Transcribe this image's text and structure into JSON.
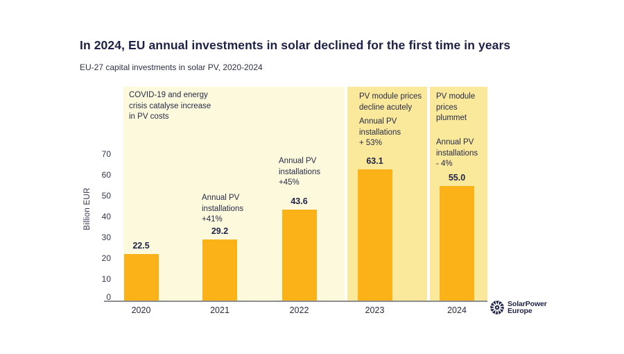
{
  "header": {
    "title": "In 2024, EU annual investments in solar declined for the first time in years",
    "subtitle": "EU-27 capital investments in solar PV, 2020-2024"
  },
  "chart_data": {
    "type": "bar",
    "title": "In 2024, EU annual investments in solar declined for the first time in years",
    "subtitle": "EU-27 capital investments in solar PV, 2020-2024",
    "categories": [
      "2020",
      "2021",
      "2022",
      "2023",
      "2024"
    ],
    "values": [
      22.5,
      29.2,
      43.6,
      63.1,
      55.0
    ],
    "xlabel": "",
    "ylabel": "Billion  EUR",
    "yticks": [
      0,
      10,
      20,
      30,
      40,
      50,
      60,
      70
    ],
    "ylim": [
      0,
      75
    ],
    "grid": "off",
    "legend": "none",
    "bar_color": "#FBB118",
    "band_colors": {
      "era1": "#FDF9DC",
      "era2": "#FAE89B",
      "era3": "#FAE89B"
    },
    "axis_line_color": "#8d8d8d",
    "text_color": "#1d2145",
    "annotations": {
      "covid": "COVID-19 and energy\ncrisis catalyse increase\nin PV costs",
      "y2021": "Annual PV\ninstallations\n+41%",
      "y2022": "Annual PV\ninstallations\n+45%",
      "y2023_top": "PV module prices\ndecline acutely",
      "y2023_sub": "Annual PV\ninstallations\n+ 53%",
      "y2024_top": "PV module\nprices\nplummet",
      "y2024_sub": "Annual PV\ninstallations\n- 4%"
    }
  },
  "logo": {
    "line1": "SolarPower",
    "line2": "Europe"
  }
}
